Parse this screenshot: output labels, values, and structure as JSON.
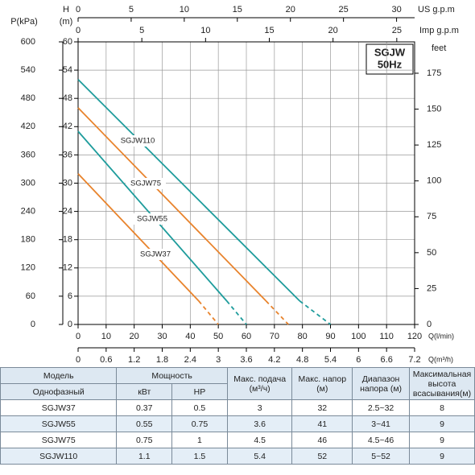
{
  "chart_data": {
    "type": "line",
    "legend_box": [
      "SGJW",
      "50Hz"
    ],
    "y_label": "H",
    "y_unit": "(m)",
    "ylim": [
      0,
      60
    ],
    "yticks": [
      0,
      6,
      12,
      18,
      24,
      30,
      36,
      42,
      48,
      54,
      60
    ],
    "p_axis": {
      "label": "P(kPa)",
      "lim": [
        0,
        600
      ],
      "ticks": [
        0,
        60,
        120,
        180,
        240,
        300,
        360,
        420,
        480,
        540,
        600
      ]
    },
    "y2_label": "feet",
    "y2lim": [
      0,
      196.85
    ],
    "y2ticks": [
      0,
      25,
      50,
      75,
      100,
      125,
      150,
      175
    ],
    "x_label": "Q(l/min)",
    "xlim": [
      0,
      120
    ],
    "xticks": [
      0,
      10,
      20,
      30,
      40,
      50,
      60,
      70,
      80,
      90,
      100,
      110,
      120
    ],
    "m3h_axis": {
      "label": "Q(m³/h)",
      "lim": [
        0,
        7.2
      ],
      "ticks": [
        0,
        0.6,
        1.2,
        1.8,
        2.4,
        3,
        3.6,
        4.2,
        4.8,
        5.4,
        6,
        6.6,
        7.2
      ]
    },
    "us_axis": {
      "label": "US g.p.m",
      "lim": [
        0,
        31.7
      ],
      "ticks": [
        0,
        5,
        10,
        15,
        20,
        25,
        30
      ]
    },
    "imp_axis": {
      "label": "Imp g.p.m",
      "lim": [
        0,
        26.4
      ],
      "ticks": [
        0,
        5,
        10,
        15,
        20,
        25
      ]
    },
    "grid": true,
    "series": [
      {
        "name": "SGJW110",
        "color": "#1e9c9c",
        "x": [
          0,
          79,
          90
        ],
        "values": [
          52,
          5,
          0
        ]
      },
      {
        "name": "SGJW75",
        "color": "#e8832c",
        "x": [
          0,
          67,
          75
        ],
        "values": [
          46,
          5,
          0
        ]
      },
      {
        "name": "SGJW55",
        "color": "#1e9c9c",
        "x": [
          0,
          53,
          60
        ],
        "values": [
          41,
          5,
          0
        ]
      },
      {
        "name": "SGJW37",
        "color": "#e8832c",
        "x": [
          0,
          43,
          50
        ],
        "values": [
          32,
          5,
          0
        ]
      }
    ]
  },
  "table": {
    "header": [
      "Модель",
      "Мощность",
      "Макс. подача (м³/ч)",
      "Макс. напор (м)",
      "Диапазон напора (м)",
      "Максимальная высота всасывания(м)"
    ],
    "subheader": [
      "Однофазный",
      "кВт",
      "HP"
    ],
    "rows": [
      [
        "SGJW37",
        0.37,
        0.5,
        3,
        32,
        "2.5~32",
        8
      ],
      [
        "SGJW55",
        0.55,
        0.75,
        3.6,
        41,
        "3~41",
        9
      ],
      [
        "SGJW75",
        0.75,
        1,
        4.5,
        46,
        "4.5~46",
        9
      ],
      [
        "SGJW110",
        1.1,
        1.5,
        5.4,
        52,
        "5~52",
        9
      ]
    ]
  }
}
